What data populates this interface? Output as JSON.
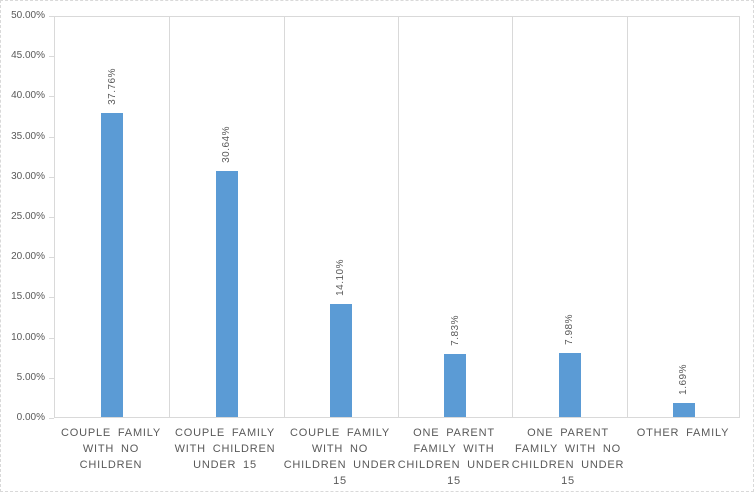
{
  "page": {
    "background_color": "#ffffff",
    "outer_border_color": "#d9d9d9",
    "outer_border_style": "dashed"
  },
  "chart_data": {
    "type": "bar",
    "title": "",
    "xlabel": "",
    "ylabel": "",
    "categories": [
      "COUPLE FAMILY WITH NO CHILDREN",
      "COUPLE FAMILY WITH CHILDREN UNDER 15",
      "COUPLE FAMILY WITH NO CHILDREN UNDER 15",
      "ONE PARENT FAMILY WITH CHILDREN UNDER 15",
      "ONE PARENT FAMILY WITH NO CHILDREN UNDER 15",
      "OTHER FAMILY"
    ],
    "category_label_lines": [
      [
        "COUPLE FAMILY",
        "WITH NO",
        "CHILDREN"
      ],
      [
        "COUPLE FAMILY",
        "WITH CHILDREN",
        "UNDER 15"
      ],
      [
        "COUPLE FAMILY",
        "WITH NO",
        "CHILDREN UNDER",
        "15"
      ],
      [
        "ONE PARENT",
        "FAMILY WITH",
        "CHILDREN UNDER",
        "15"
      ],
      [
        "ONE PARENT",
        "FAMILY WITH NO",
        "CHILDREN UNDER",
        "15"
      ],
      [
        "OTHER FAMILY"
      ]
    ],
    "values": [
      37.76,
      30.64,
      14.1,
      7.83,
      7.98,
      1.69
    ],
    "data_labels": [
      "37.76%",
      "30.64%",
      "14.10%",
      "7.83%",
      "7.98%",
      "1.69%"
    ],
    "data_label_rotation_degrees": 90,
    "y_axis": {
      "min": 0,
      "max": 50,
      "step": 5,
      "tick_labels": [
        "50.00%",
        "45.00%",
        "40.00%",
        "35.00%",
        "30.00%",
        "25.00%",
        "20.00%",
        "15.00%",
        "10.00%",
        "5.00%",
        "0.00%"
      ]
    },
    "ylim": [
      0,
      50
    ],
    "legend": "none",
    "grid": {
      "horizontal_gridlines": false,
      "vertical_category_separators": true
    },
    "colors": {
      "bar_fill": "#5b9bd5",
      "axis_line": "#d9d9d9",
      "separator_line": "#d9d9d9",
      "tick_mark": "#d9d9d9",
      "axis_text": "#595959",
      "data_label_text": "#595959"
    }
  }
}
